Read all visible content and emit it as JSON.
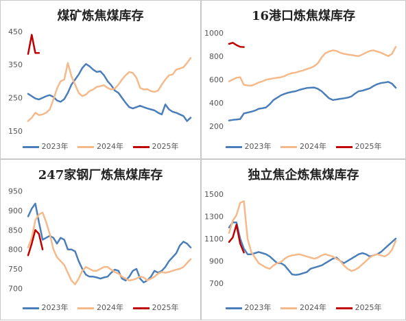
{
  "chart_data": [
    {
      "type": "line",
      "title": "煤矿炼焦煤库存",
      "ylim": [
        150,
        460
      ],
      "yticks": [
        "450",
        "350",
        "250",
        "150"
      ],
      "ytick_values": [
        450,
        350,
        250,
        150
      ],
      "grid": false,
      "legend": "bottom",
      "series": [
        {
          "name": "2023年",
          "color": "#4a7ebb",
          "values": [
            262,
            255,
            248,
            245,
            250,
            255,
            258,
            253,
            242,
            238,
            246,
            265,
            290,
            305,
            320,
            340,
            352,
            345,
            335,
            328,
            330,
            318,
            300,
            288,
            272,
            265,
            250,
            235,
            222,
            218,
            222,
            226,
            222,
            218,
            215,
            212,
            205,
            200,
            230,
            215,
            208,
            205,
            200,
            195,
            180,
            190
          ]
        },
        {
          "name": "2024年",
          "color": "#f5b98a",
          "values": [
            180,
            190,
            205,
            198,
            200,
            205,
            215,
            245,
            278,
            300,
            305,
            355,
            315,
            290,
            265,
            255,
            260,
            270,
            275,
            283,
            285,
            288,
            280,
            275,
            278,
            290,
            305,
            318,
            328,
            325,
            310,
            280,
            275,
            276,
            270,
            268,
            272,
            290,
            305,
            318,
            320,
            335,
            338,
            342,
            355,
            370
          ]
        },
        {
          "name": "2025年",
          "color": "#c00000",
          "values": [
            382,
            440,
            385,
            385
          ]
        }
      ]
    },
    {
      "type": "line",
      "title": "16港口炼焦煤库存",
      "ylim": [
        160,
        1040
      ],
      "yticks": [
        "1000",
        "800",
        "600",
        "400",
        "200"
      ],
      "ytick_values": [
        1000,
        800,
        600,
        400,
        200
      ],
      "grid": false,
      "legend": "bottom",
      "series": [
        {
          "name": "2023年",
          "color": "#4a7ebb",
          "values": [
            250,
            255,
            258,
            262,
            310,
            318,
            325,
            335,
            350,
            355,
            362,
            390,
            425,
            445,
            465,
            478,
            488,
            495,
            500,
            512,
            520,
            528,
            530,
            532,
            520,
            500,
            470,
            440,
            425,
            430,
            435,
            440,
            445,
            455,
            480,
            500,
            505,
            515,
            525,
            545,
            560,
            570,
            575,
            580,
            565,
            530
          ]
        },
        {
          "name": "2024年",
          "color": "#f5b98a",
          "values": [
            585,
            600,
            615,
            620,
            555,
            550,
            548,
            560,
            575,
            585,
            598,
            605,
            610,
            615,
            620,
            630,
            645,
            655,
            660,
            670,
            678,
            690,
            700,
            715,
            740,
            790,
            825,
            840,
            850,
            845,
            830,
            820,
            815,
            810,
            805,
            800,
            815,
            830,
            845,
            850,
            840,
            830,
            815,
            800,
            820,
            880
          ]
        },
        {
          "name": "2025年",
          "color": "#c00000",
          "values": [
            905,
            915,
            895,
            880,
            878
          ]
        }
      ]
    },
    {
      "type": "line",
      "title": "247家钢厂炼焦煤库存",
      "ylim": [
        690,
        960
      ],
      "yticks": [
        "950",
        "900",
        "850",
        "800",
        "750",
        "700"
      ],
      "ytick_values": [
        950,
        900,
        850,
        800,
        750,
        700
      ],
      "grid": false,
      "legend": "bottom",
      "series": [
        {
          "name": "2023年",
          "color": "#4a7ebb",
          "values": [
            885,
            905,
            918,
            870,
            825,
            830,
            835,
            830,
            815,
            830,
            825,
            800,
            800,
            795,
            770,
            750,
            735,
            730,
            730,
            728,
            725,
            728,
            730,
            740,
            748,
            745,
            725,
            720,
            730,
            745,
            750,
            725,
            715,
            720,
            730,
            745,
            740,
            745,
            755,
            770,
            780,
            790,
            810,
            820,
            815,
            805
          ]
        },
        {
          "name": "2024年",
          "color": "#f5b98a",
          "values": [
            805,
            830,
            875,
            890,
            895,
            870,
            840,
            800,
            780,
            770,
            760,
            740,
            720,
            710,
            725,
            745,
            755,
            750,
            745,
            745,
            750,
            755,
            755,
            748,
            742,
            738,
            730,
            725,
            720,
            722,
            725,
            730,
            728,
            720,
            725,
            730,
            738,
            742,
            740,
            742,
            745,
            748,
            750,
            755,
            765,
            775
          ]
        },
        {
          "name": "2025年",
          "color": "#c00000",
          "values": [
            785,
            815,
            850,
            840,
            800
          ]
        }
      ]
    },
    {
      "type": "line",
      "title": "独立焦企炼焦煤库存",
      "ylim": [
        620,
        1560
      ],
      "yticks": [
        "1500",
        "1300",
        "1100",
        "900",
        "700"
      ],
      "ytick_values": [
        1500,
        1300,
        1100,
        900,
        700
      ],
      "grid": false,
      "legend": "bottom",
      "series": [
        {
          "name": "2023年",
          "color": "#4a7ebb",
          "values": [
            1200,
            1245,
            1245,
            1100,
            1010,
            960,
            960,
            970,
            980,
            970,
            960,
            940,
            910,
            880,
            880,
            860,
            820,
            780,
            775,
            780,
            790,
            800,
            830,
            840,
            850,
            860,
            880,
            900,
            920,
            930,
            900,
            880,
            900,
            920,
            940,
            960,
            970,
            960,
            940,
            950,
            960,
            980,
            1010,
            1040,
            1070,
            1100
          ]
        },
        {
          "name": "2024年",
          "color": "#f5b98a",
          "values": [
            1150,
            1260,
            1310,
            1420,
            1435,
            1100,
            980,
            930,
            880,
            860,
            840,
            830,
            860,
            880,
            890,
            920,
            940,
            950,
            955,
            960,
            950,
            940,
            930,
            920,
            930,
            950,
            960,
            950,
            940,
            920,
            900,
            860,
            830,
            810,
            820,
            840,
            870,
            900,
            930,
            950,
            960,
            950,
            940,
            960,
            1000,
            1080
          ]
        },
        {
          "name": "2025年",
          "color": "#c00000",
          "values": [
            1070,
            1110,
            1225,
            1055,
            975
          ]
        }
      ]
    }
  ]
}
